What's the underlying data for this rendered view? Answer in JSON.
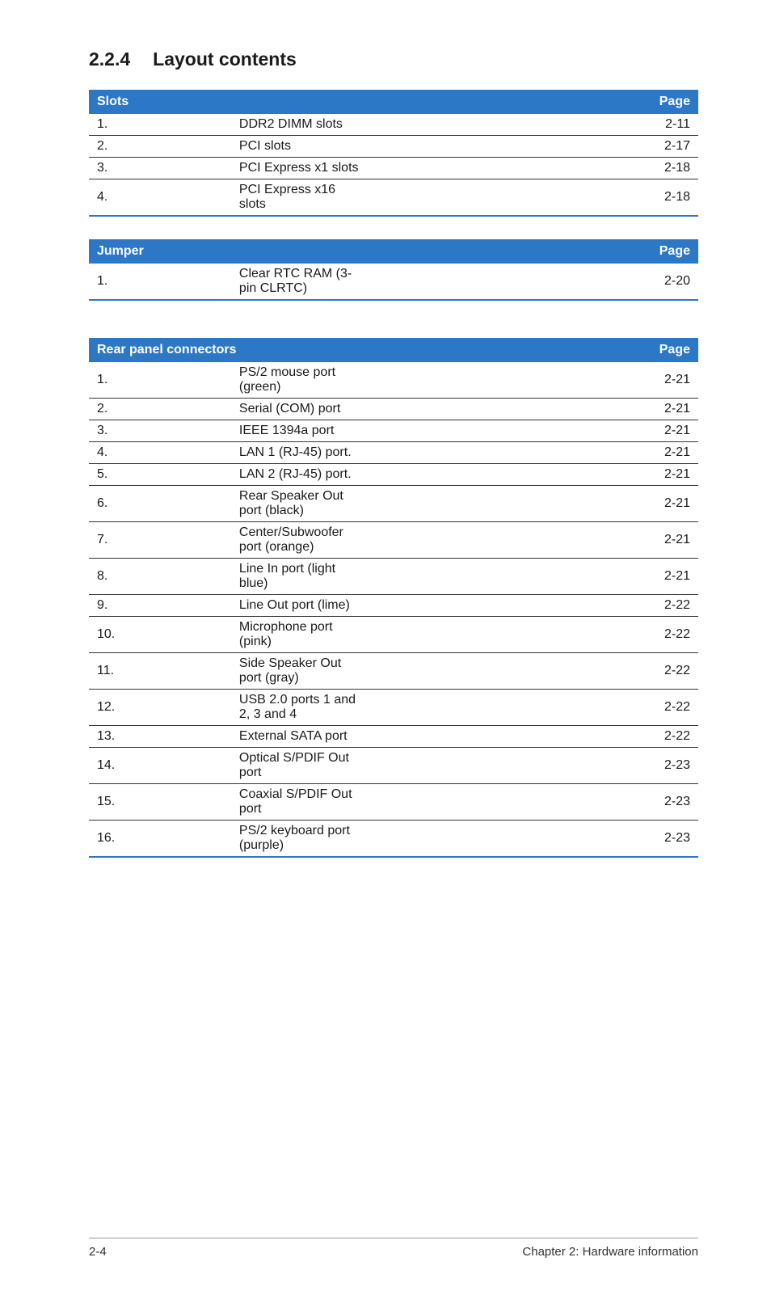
{
  "heading": {
    "number": "2.2.4",
    "title": "Layout contents"
  },
  "tables": {
    "slots": {
      "head_left": "Slots",
      "head_right": "Page",
      "rows": [
        {
          "n": "1.",
          "label": "DDR2 DIMM slots",
          "page": "2-11"
        },
        {
          "n": "2.",
          "label": "PCI slots",
          "page": "2-17"
        },
        {
          "n": "3.",
          "label": "PCI Express x1 slots",
          "page": "2-18"
        },
        {
          "n": "4.",
          "label": "PCI Express x16 slots",
          "page": "2-18"
        }
      ]
    },
    "jumper": {
      "head_left": "Jumper",
      "head_right": "Page",
      "rows": [
        {
          "n": "1.",
          "label": "Clear RTC RAM (3-pin CLRTC)",
          "page": "2-20"
        }
      ]
    },
    "rear": {
      "head_left": "Rear panel connectors",
      "head_right": "Page",
      "rows": [
        {
          "n": "1.",
          "label": "PS/2 mouse port (green)",
          "page": "2-21"
        },
        {
          "n": "2.",
          "label": "Serial (COM) port",
          "page": "2-21"
        },
        {
          "n": "3.",
          "label": "IEEE 1394a port",
          "page": "2-21"
        },
        {
          "n": "4.",
          "label": "LAN 1 (RJ-45) port.",
          "page": "2-21"
        },
        {
          "n": "5.",
          "label": "LAN 2 (RJ-45) port.",
          "page": "2-21"
        },
        {
          "n": "6.",
          "label": "Rear Speaker Out port (black)",
          "page": "2-21"
        },
        {
          "n": "7.",
          "label": "Center/Subwoofer port (orange)",
          "page": "2-21"
        },
        {
          "n": "8.",
          "label": "Line In port (light blue)",
          "page": "2-21"
        },
        {
          "n": "9.",
          "label": "Line Out port (lime)",
          "page": "2-22"
        },
        {
          "n": "10.",
          "label": "Microphone port (pink)",
          "page": "2-22"
        },
        {
          "n": "11.",
          "label": "Side Speaker Out port (gray)",
          "page": "2-22"
        },
        {
          "n": "12.",
          "label": "USB 2.0 ports 1 and 2, 3 and 4",
          "page": "2-22"
        },
        {
          "n": "13.",
          "label": "External SATA port",
          "page": "2-22"
        },
        {
          "n": "14.",
          "label": "Optical S/PDIF Out port",
          "page": "2-23"
        },
        {
          "n": "15.",
          "label": "Coaxial S/PDIF Out port",
          "page": "2-23"
        },
        {
          "n": "16.",
          "label": "PS/2 keyboard port (purple)",
          "page": "2-23"
        }
      ]
    }
  },
  "footer": {
    "left": "2-4",
    "right": "Chapter 2: Hardware information"
  },
  "colors": {
    "header_bg": "#2d77c7",
    "header_fg": "#ffffff",
    "row_border": "#333333",
    "bottom_border": "#2d77c7"
  }
}
